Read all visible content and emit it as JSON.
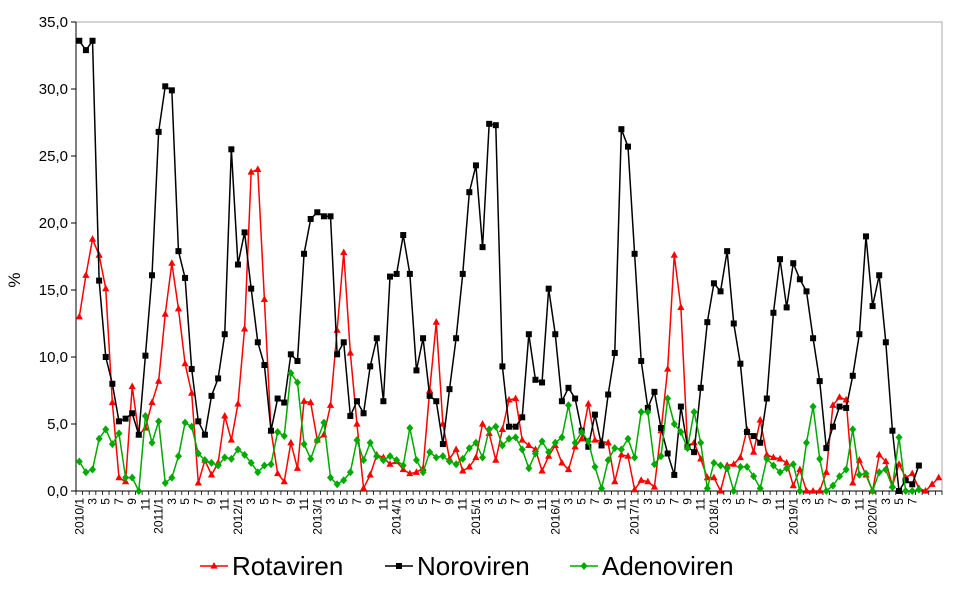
{
  "chart_data": {
    "type": "line",
    "ylabel": "%",
    "ylim": [
      0,
      35
    ],
    "yticks": [
      0,
      5,
      10,
      15,
      20,
      25,
      30,
      35
    ],
    "ytick_labels": [
      "0,0",
      "5,0",
      "10,0",
      "15,0",
      "20,0",
      "25,0",
      "30,0",
      "35,0"
    ],
    "xtick_labels": [
      "2010/1",
      "3",
      "5",
      "7",
      "9",
      "11",
      "2011/1",
      "3",
      "5",
      "7",
      "9",
      "11",
      "2012/1",
      "3",
      "5",
      "7",
      "9",
      "11",
      "2013/1",
      "3",
      "5",
      "7",
      "9",
      "11",
      "2014/1",
      "3",
      "5",
      "7",
      "9",
      "11",
      "2015/1",
      "3",
      "5",
      "7",
      "9",
      "11",
      "2016/1",
      "3",
      "5",
      "7",
      "9",
      "11",
      "2017/1",
      "3",
      "5",
      "7",
      "9",
      "11",
      "2018/1",
      "3",
      "5",
      "7",
      "9",
      "11",
      "2019/1",
      "3",
      "5",
      "7",
      "9",
      "11",
      "2020/1",
      "3",
      "5",
      "7"
    ],
    "grid": false,
    "legend_position": "bottom",
    "series": [
      {
        "name": "Rotaviren",
        "color": "#ff0000",
        "marker": "triangle",
        "values": [
          13.0,
          16.1,
          18.8,
          17.6,
          15.1,
          6.6,
          1.0,
          0.7,
          7.8,
          4.2,
          4.7,
          6.6,
          8.2,
          13.2,
          17.0,
          13.6,
          9.5,
          7.3,
          0.6,
          2.3,
          1.2,
          2.1,
          5.6,
          3.8,
          6.5,
          12.1,
          23.8,
          24.0,
          14.3,
          4.5,
          1.3,
          0.7,
          3.6,
          1.7,
          6.7,
          6.6,
          3.8,
          4.2,
          6.4,
          12.0,
          17.8,
          10.3,
          5.0,
          0.2,
          1.2,
          2.7,
          2.5,
          2.0,
          2.2,
          1.6,
          1.3,
          1.4,
          1.7,
          7.5,
          12.6,
          5.0,
          2.4,
          3.1,
          1.5,
          1.8,
          2.5,
          5.0,
          4.3,
          2.3,
          4.6,
          6.8,
          6.9,
          3.8,
          3.4,
          3.1,
          1.5,
          2.6,
          3.4,
          2.1,
          1.6,
          3.3,
          3.9,
          6.5,
          3.8,
          3.7,
          3.6,
          0.7,
          2.7,
          2.6,
          0.1,
          0.8,
          0.7,
          0.3,
          4.5,
          9.1,
          17.6,
          13.7,
          3.4,
          3.6,
          2.4,
          1.0,
          1.0,
          0.0,
          1.9,
          2.0,
          2.5,
          4.6,
          2.9,
          5.3,
          2.7,
          2.5,
          2.4,
          2.1,
          0.4,
          1.6,
          0.0,
          0.0,
          0.0,
          1.4,
          6.4,
          7.0,
          6.8,
          0.6,
          2.3,
          1.2,
          0.0,
          2.7,
          2.2,
          0.4,
          2.0,
          1.0,
          1.3,
          0.2,
          0.0,
          0.5,
          1.0
        ]
      },
      {
        "name": "Noroviren",
        "color": "#000000",
        "marker": "square",
        "values": [
          33.6,
          32.9,
          33.6,
          15.7,
          10.0,
          8.0,
          5.2,
          5.4,
          5.8,
          4.2,
          10.1,
          16.1,
          26.8,
          30.2,
          29.9,
          17.9,
          15.9,
          9.1,
          5.2,
          4.2,
          7.1,
          8.4,
          11.7,
          25.5,
          16.9,
          19.3,
          15.1,
          11.1,
          9.4,
          4.5,
          6.9,
          6.6,
          10.2,
          9.7,
          17.7,
          20.3,
          20.8,
          20.5,
          20.5,
          10.2,
          11.1,
          5.6,
          6.7,
          5.8,
          9.3,
          11.4,
          6.7,
          16.0,
          16.2,
          19.1,
          16.2,
          9.0,
          11.4,
          7.1,
          6.7,
          3.5,
          7.6,
          11.4,
          16.2,
          22.3,
          24.3,
          18.2,
          27.4,
          27.3,
          9.3,
          4.8,
          4.8,
          5.5,
          11.7,
          8.3,
          8.1,
          15.1,
          11.7,
          6.7,
          7.7,
          6.9,
          4.5,
          3.3,
          5.7,
          3.4,
          7.2,
          10.3,
          27.0,
          25.7,
          17.7,
          9.7,
          6.2,
          7.4,
          4.7,
          2.8,
          1.2,
          6.3,
          3.3,
          2.9,
          7.7,
          12.6,
          15.5,
          14.9,
          17.9,
          12.5,
          9.5,
          4.4,
          4.1,
          3.6,
          6.9,
          13.3,
          17.3,
          13.7,
          17.0,
          15.8,
          14.9,
          11.4,
          8.2,
          3.2,
          4.8,
          6.3,
          6.2,
          8.6,
          11.7,
          19.0,
          13.8,
          16.1,
          11.1,
          4.5,
          0.0,
          0.8,
          0.5,
          1.9
        ]
      },
      {
        "name": "Adenoviren",
        "color": "#00aa00",
        "marker": "diamond",
        "values": [
          2.2,
          1.4,
          1.6,
          3.9,
          4.6,
          3.5,
          4.3,
          1.0,
          1.0,
          0.0,
          5.6,
          3.6,
          5.2,
          0.6,
          1.0,
          2.6,
          5.1,
          4.8,
          2.8,
          2.3,
          2.1,
          1.9,
          2.5,
          2.4,
          3.1,
          2.7,
          2.1,
          1.4,
          1.9,
          2.0,
          4.4,
          4.1,
          8.8,
          8.1,
          3.5,
          2.4,
          3.8,
          5.1,
          1.0,
          0.5,
          0.8,
          1.4,
          3.8,
          2.3,
          3.6,
          2.6,
          2.3,
          2.6,
          2.3,
          1.9,
          4.7,
          2.3,
          1.4,
          2.9,
          2.5,
          2.6,
          2.2,
          2.0,
          2.4,
          3.2,
          3.6,
          2.5,
          4.6,
          4.8,
          3.4,
          3.9,
          4.0,
          3.1,
          1.7,
          2.8,
          3.7,
          2.9,
          3.6,
          4.0,
          6.4,
          3.6,
          4.4,
          3.7,
          1.8,
          0.2,
          2.3,
          3.2,
          3.1,
          3.9,
          2.5,
          5.9,
          5.9,
          2.0,
          2.6,
          6.9,
          5.0,
          4.4,
          3.2,
          5.9,
          3.6,
          0.2,
          2.1,
          1.9,
          1.7,
          0.0,
          1.8,
          1.8,
          1.1,
          0.2,
          2.4,
          1.9,
          1.4,
          1.7,
          2.0,
          0.0,
          3.6,
          6.3,
          2.4,
          0.0,
          0.4,
          1.1,
          1.6,
          4.6,
          1.2,
          1.3,
          0.0,
          1.4,
          1.6,
          0.3,
          4.0,
          0.0,
          0.0,
          0.1
        ]
      }
    ]
  }
}
